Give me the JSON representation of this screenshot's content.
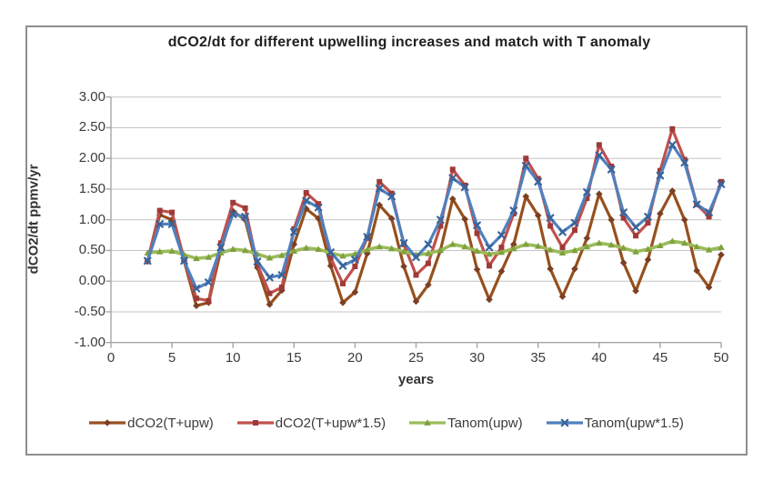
{
  "frame": {
    "background": "#FFFFFF",
    "border_color": "#8E8E8E"
  },
  "chart_data": {
    "type": "line",
    "title": "dCO2/dt for different upwelling increases and match with T anomaly",
    "xlabel": "years",
    "ylabel": "dCO2/dt ppmv/yr",
    "xlim": [
      0,
      50
    ],
    "ylim": [
      -1.0,
      3.0
    ],
    "grid": "horizontal",
    "legend_position": "bottom",
    "axis_color": "#A6A6A6",
    "gridline_color": "#C4C4C4",
    "text_color": "#3B3B3B",
    "x_ticks": [
      0,
      5,
      10,
      15,
      20,
      25,
      30,
      35,
      40,
      45,
      50
    ],
    "y_tick_labels": [
      "3.00",
      "2.50",
      "2.00",
      "1.50",
      "1.00",
      "0.50",
      "0.00",
      "-0.50",
      "-1.00"
    ],
    "y_tick_values": [
      3.0,
      2.5,
      2.0,
      1.5,
      1.0,
      0.5,
      0.0,
      -0.5,
      -1.0
    ],
    "x": [
      3,
      4,
      5,
      6,
      7,
      8,
      9,
      10,
      11,
      12,
      13,
      14,
      15,
      16,
      17,
      18,
      19,
      20,
      21,
      22,
      23,
      24,
      25,
      26,
      27,
      28,
      29,
      30,
      31,
      32,
      33,
      34,
      35,
      36,
      37,
      38,
      39,
      40,
      41,
      42,
      43,
      44,
      45,
      46,
      47,
      48,
      49,
      50
    ],
    "series": [
      {
        "name": "dCO2(T+upw)",
        "color": "#96501E",
        "marker_color": "#7C3F24",
        "marker": "diamond",
        "values": [
          0.32,
          1.08,
          1.0,
          0.33,
          -0.4,
          -0.35,
          0.5,
          1.14,
          1.0,
          0.22,
          -0.38,
          -0.15,
          0.6,
          1.18,
          1.02,
          0.25,
          -0.35,
          -0.18,
          0.45,
          1.24,
          1.02,
          0.24,
          -0.33,
          -0.06,
          0.5,
          1.34,
          1.01,
          0.19,
          -0.3,
          0.16,
          0.6,
          1.38,
          1.07,
          0.2,
          -0.25,
          0.2,
          0.7,
          1.42,
          1.0,
          0.3,
          -0.16,
          0.35,
          1.1,
          1.47,
          1.0,
          0.17,
          -0.1,
          0.43
        ]
      },
      {
        "name": "dCO2(T+upw*1.5)",
        "color": "#C0504D",
        "marker_color": "#9E3A38",
        "marker": "square",
        "values": [
          0.33,
          1.15,
          1.12,
          0.35,
          -0.28,
          -0.32,
          0.62,
          1.28,
          1.19,
          0.27,
          -0.2,
          -0.1,
          0.85,
          1.44,
          1.26,
          0.38,
          -0.04,
          0.24,
          0.7,
          1.62,
          1.43,
          0.6,
          0.1,
          0.29,
          0.9,
          1.82,
          1.56,
          0.78,
          0.25,
          0.55,
          1.1,
          2.0,
          1.67,
          0.9,
          0.55,
          0.83,
          1.35,
          2.22,
          1.87,
          1.03,
          0.74,
          0.95,
          1.8,
          2.48,
          1.98,
          1.25,
          1.05,
          1.62
        ]
      },
      {
        "name": "Tanom(upw)",
        "color": "#9BBB59",
        "marker_color": "#7FA13E",
        "marker": "triangle",
        "values": [
          0.46,
          0.48,
          0.49,
          0.43,
          0.37,
          0.39,
          0.46,
          0.52,
          0.5,
          0.44,
          0.38,
          0.42,
          0.49,
          0.54,
          0.52,
          0.46,
          0.41,
          0.44,
          0.51,
          0.56,
          0.53,
          0.48,
          0.43,
          0.45,
          0.5,
          0.6,
          0.56,
          0.49,
          0.44,
          0.47,
          0.53,
          0.6,
          0.57,
          0.51,
          0.46,
          0.5,
          0.56,
          0.62,
          0.59,
          0.54,
          0.48,
          0.52,
          0.58,
          0.65,
          0.62,
          0.56,
          0.51,
          0.55
        ]
      },
      {
        "name": "Tanom(upw*1.5)",
        "color": "#4F81BD",
        "marker_color": "#38639A",
        "marker": "x",
        "values": [
          0.33,
          0.93,
          0.93,
          0.33,
          -0.12,
          -0.02,
          0.55,
          1.09,
          1.05,
          0.32,
          0.06,
          0.1,
          0.8,
          1.31,
          1.2,
          0.47,
          0.25,
          0.35,
          0.72,
          1.51,
          1.38,
          0.62,
          0.39,
          0.6,
          1.0,
          1.68,
          1.53,
          0.91,
          0.55,
          0.75,
          1.15,
          1.88,
          1.62,
          1.03,
          0.8,
          0.95,
          1.45,
          2.05,
          1.82,
          1.12,
          0.88,
          1.05,
          1.72,
          2.22,
          1.93,
          1.25,
          1.12,
          1.58
        ]
      }
    ]
  }
}
